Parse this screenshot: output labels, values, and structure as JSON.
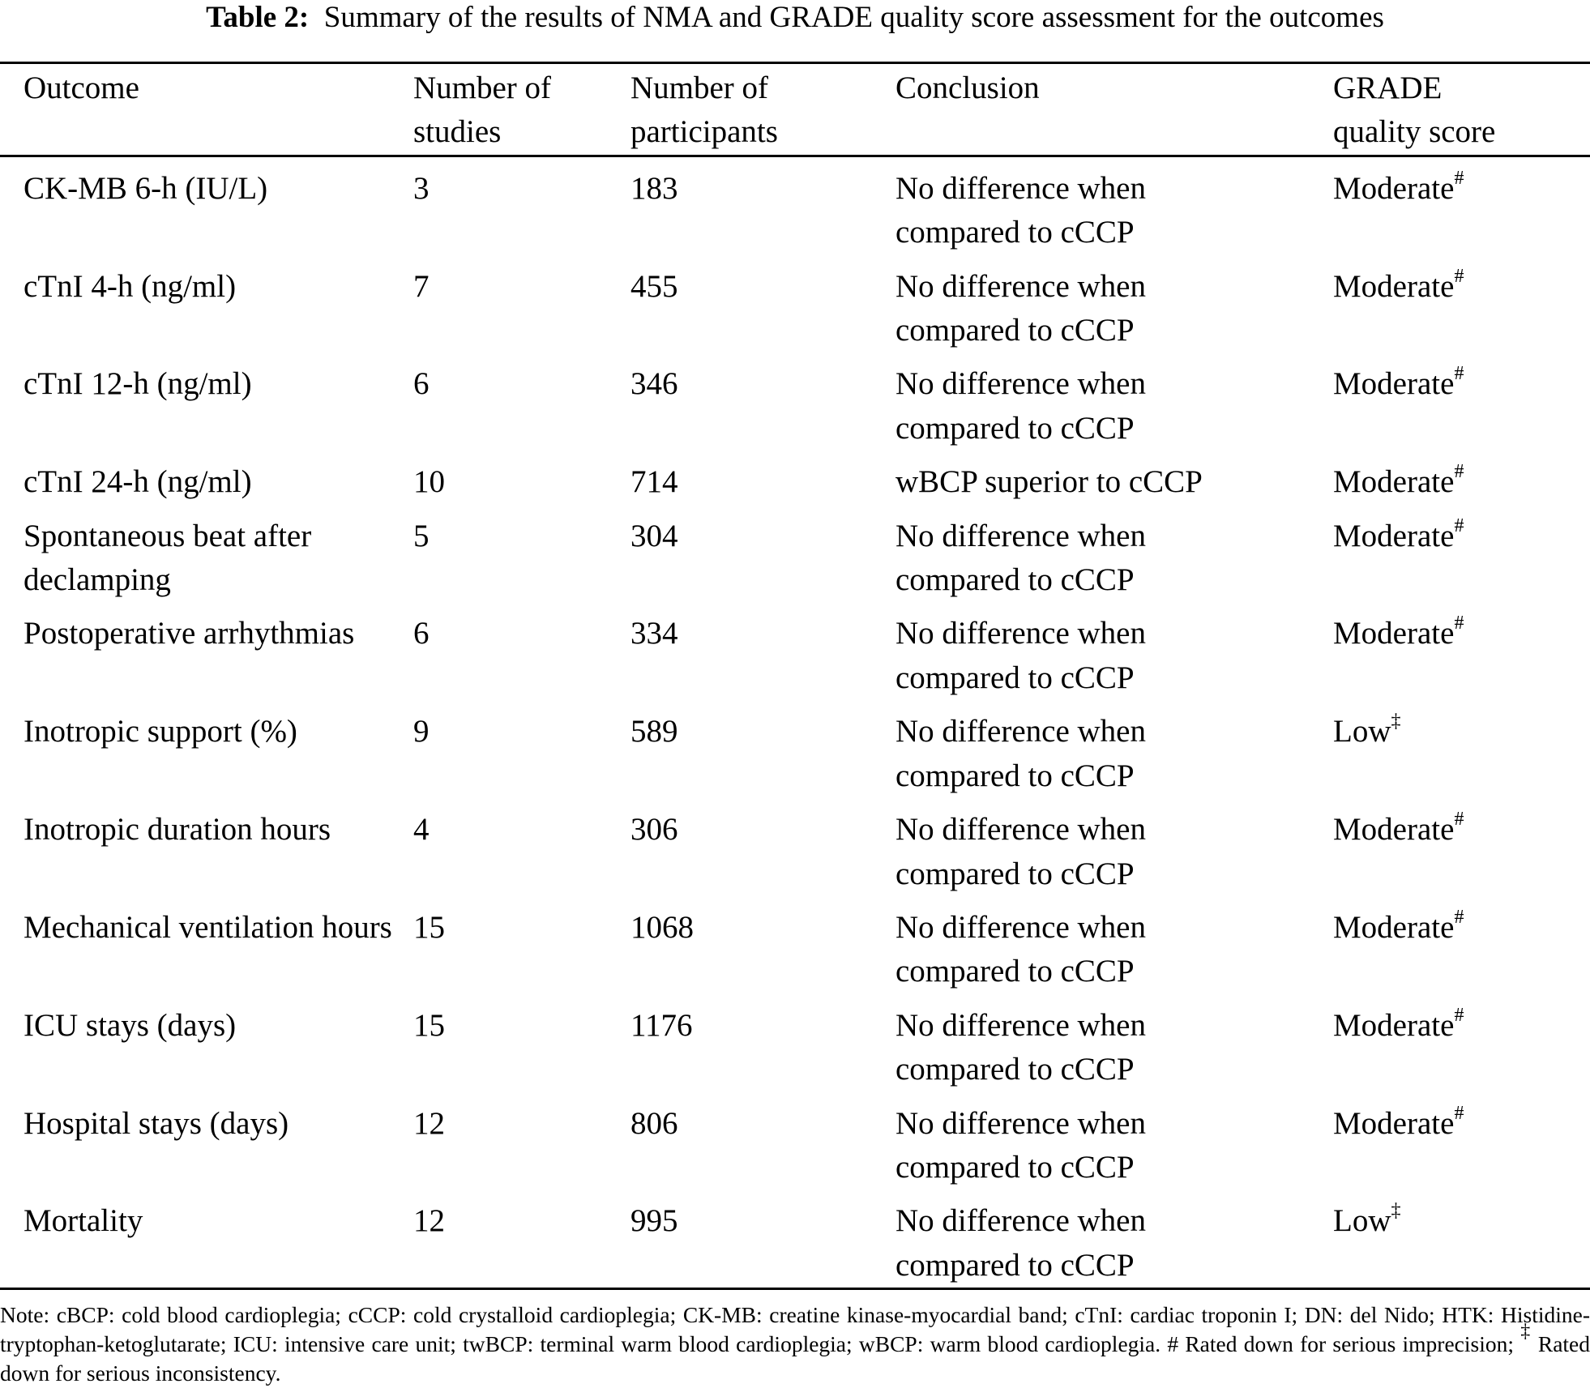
{
  "title": {
    "label": "Table 2:",
    "text": "Summary of the results of NMA and GRADE quality score assessment for the outcomes"
  },
  "columns": [
    {
      "line1": "Outcome",
      "line2": ""
    },
    {
      "line1": "Number of",
      "line2": "studies"
    },
    {
      "line1": "Number of",
      "line2": "participants"
    },
    {
      "line1": "Conclusion",
      "line2": ""
    },
    {
      "line1": "GRADE",
      "line2": "quality score"
    }
  ],
  "rows": [
    {
      "outcome": "CK-MB 6-h (IU/L)",
      "studies": "3",
      "participants": "183",
      "conclusion": "No difference when compared to cCCP",
      "grade": "Moderate",
      "mark": "#"
    },
    {
      "outcome": "cTnI 4-h (ng/ml)",
      "studies": "7",
      "participants": "455",
      "conclusion": "No difference when compared to cCCP",
      "grade": "Moderate",
      "mark": "#"
    },
    {
      "outcome": "cTnI 12-h (ng/ml)",
      "studies": "6",
      "participants": "346",
      "conclusion": "No difference when compared to cCCP",
      "grade": "Moderate",
      "mark": "#"
    },
    {
      "outcome": "cTnI 24-h (ng/ml)",
      "studies": "10",
      "participants": "714",
      "conclusion": "wBCP superior to cCCP",
      "grade": "Moderate",
      "mark": "#"
    },
    {
      "outcome": "Spontaneous beat after declamping",
      "studies": "5",
      "participants": "304",
      "conclusion": "No difference when compared to cCCP",
      "grade": "Moderate",
      "mark": "#"
    },
    {
      "outcome": "Postoperative arrhythmias",
      "studies": "6",
      "participants": "334",
      "conclusion": "No difference when compared to cCCP",
      "grade": "Moderate",
      "mark": "#"
    },
    {
      "outcome": "Inotropic support (%)",
      "studies": "9",
      "participants": "589",
      "conclusion": "No difference when compared to cCCP",
      "grade": "Low",
      "mark": "‡"
    },
    {
      "outcome": "Inotropic duration hours",
      "studies": "4",
      "participants": "306",
      "conclusion": "No difference when compared to cCCP",
      "grade": "Moderate",
      "mark": "#"
    },
    {
      "outcome": "Mechanical ventilation hours",
      "studies": "15",
      "participants": "1068",
      "conclusion": "No difference when compared to cCCP",
      "grade": "Moderate",
      "mark": "#"
    },
    {
      "outcome": "ICU stays (days)",
      "studies": "15",
      "participants": "1176",
      "conclusion": "No difference when compared to cCCP",
      "grade": "Moderate",
      "mark": "#"
    },
    {
      "outcome": "Hospital stays (days)",
      "studies": "12",
      "participants": "806",
      "conclusion": "No difference when compared to cCCP",
      "grade": "Moderate",
      "mark": "#"
    },
    {
      "outcome": "Mortality",
      "studies": "12",
      "participants": "995",
      "conclusion": "No difference when compared to cCCP",
      "grade": "Low",
      "mark": "‡"
    }
  ],
  "note": {
    "text": "Note: cBCP: cold blood cardioplegia; cCCP: cold crystalloid cardioplegia; CK-MB: creatine kinase-myocardial band; cTnI: cardiac troponin I; DN: del Nido; HTK: Histidine-tryptophan-ketoglutarate; ICU: intensive care unit; twBCP: terminal warm blood cardioplegia; wBCP: warm blood cardioplegia. # Rated down for serious imprecision; ",
    "mark": "‡",
    "tail": " Rated down for serious inconsistency."
  }
}
